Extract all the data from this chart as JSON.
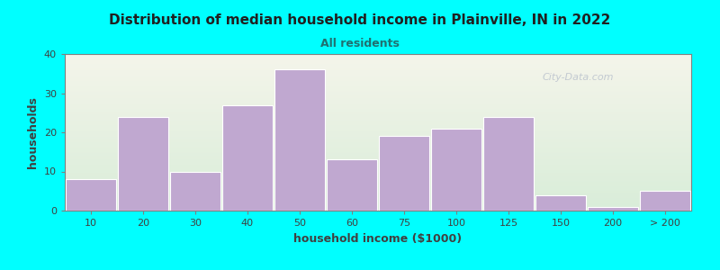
{
  "title": "Distribution of median household income in Plainville, IN in 2022",
  "subtitle": "All residents",
  "xlabel": "household income ($1000)",
  "ylabel": "households",
  "background_outer": "#00FFFF",
  "background_inner_left": "#d8ecd8",
  "background_inner_right": "#f0f0e8",
  "bar_color": "#c0a8d0",
  "bar_edgecolor": "#ffffff",
  "title_color": "#202020",
  "subtitle_color": "#207070",
  "axis_label_color": "#404040",
  "tick_label_color": "#404040",
  "watermark": "City-Data.com",
  "categories": [
    "10",
    "20",
    "30",
    "40",
    "50",
    "60",
    "75",
    "100",
    "125",
    "150",
    "200",
    "> 200"
  ],
  "values": [
    8,
    24,
    10,
    27,
    36,
    13,
    19,
    21,
    24,
    4,
    1,
    5
  ],
  "bar_widths": [
    1,
    1,
    1,
    1,
    1,
    1,
    1,
    1,
    1,
    1,
    1,
    1
  ],
  "bar_positions": [
    0,
    1,
    2,
    3,
    4,
    5,
    6,
    7,
    8,
    9,
    10,
    11
  ],
  "ylim": [
    0,
    40
  ],
  "yticks": [
    0,
    10,
    20,
    30,
    40
  ]
}
